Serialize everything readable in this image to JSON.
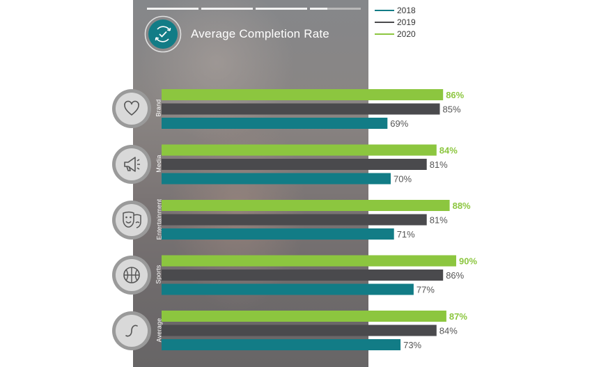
{
  "chart_data": {
    "type": "bar",
    "orientation": "horizontal",
    "title": "Average Completion Rate",
    "categories": [
      "Brand",
      "Media",
      "Entertainment",
      "Sports",
      "Average"
    ],
    "series": [
      {
        "name": "2020",
        "values": [
          86,
          84,
          88,
          90,
          87
        ],
        "color": "#8cc63f",
        "value_labels": [
          "86%",
          "84%",
          "88%",
          "90%",
          "87%"
        ]
      },
      {
        "name": "2019",
        "values": [
          85,
          81,
          81,
          86,
          84
        ],
        "color": "#4a4a4d",
        "value_labels": [
          "85%",
          "81%",
          "81%",
          "86%",
          "84%"
        ]
      },
      {
        "name": "2018",
        "values": [
          69,
          70,
          71,
          77,
          73
        ],
        "color": "#127c86",
        "value_labels": [
          "69%",
          "70%",
          "71%",
          "77%",
          "73%"
        ]
      }
    ],
    "legend": {
      "position": "top-right",
      "entries": [
        {
          "label": "2018",
          "color": "#127c86"
        },
        {
          "label": "2019",
          "color": "#4a4a4d"
        },
        {
          "label": "2020",
          "color": "#8cc63f"
        }
      ]
    },
    "category_icons": [
      "heart-icon",
      "megaphone-icon",
      "theater-masks-icon",
      "basketball-icon",
      "wave-icon"
    ],
    "title_icon": "refresh-check-icon",
    "value_label_colors": {
      "2020": "#8cc63f",
      "2019": "#555555",
      "2018": "#555555"
    },
    "grid": false,
    "xlabel": "",
    "ylabel": ""
  }
}
